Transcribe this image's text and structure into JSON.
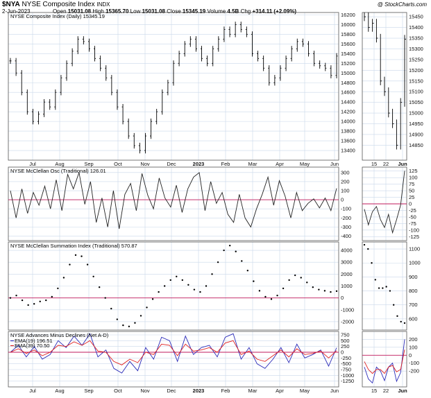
{
  "header": {
    "symbol": "$NYA",
    "name": "NYSE Composite Index",
    "exchange": "INDX",
    "date": "2-Jun-2023",
    "open_label": "Open",
    "open": "15031.08",
    "high_label": "High",
    "high": "15365.70",
    "low_label": "Low",
    "low": "15031.08",
    "close_label": "Close",
    "close": "15345.19",
    "volume_label": "Volume",
    "volume": "4.5B",
    "chg_label": "Chg",
    "chg": "+314.11 (+2.09%)",
    "watermark": "@ StockCharts.com"
  },
  "colors": {
    "grid": "#c9d7ea",
    "zero_line": "#c2185b",
    "ema19": "#2b2bb8",
    "ema39": "#e02020",
    "text": "#000000"
  },
  "chart_data": [
    {
      "type": "ohlc",
      "panel": "price",
      "title": "NYSE Composite Index (Daily) 15345.19",
      "ylim": [
        13200,
        16250
      ],
      "yticks": [
        13400,
        13600,
        13800,
        14000,
        14200,
        14400,
        14600,
        14800,
        15000,
        15200,
        15400,
        15600,
        15800,
        16000,
        16200
      ],
      "closes": [
        15250,
        15000,
        14600,
        14200,
        14000,
        14150,
        14400,
        14300,
        14600,
        14900,
        15200,
        15450,
        15700,
        15650,
        15500,
        15300,
        15100,
        14900,
        14600,
        14300,
        14000,
        13700,
        13500,
        13400,
        13700,
        14000,
        14200,
        14600,
        14800,
        15200,
        15400,
        15600,
        15700,
        15500,
        15300,
        15200,
        15500,
        15700,
        15900,
        15800,
        16000,
        15900,
        15800,
        15400,
        15300,
        15100,
        14800,
        14900,
        15100,
        15300,
        15500,
        15650,
        15600,
        15400,
        15200,
        15150,
        15100,
        14950,
        15350
      ],
      "zoom_ylim": [
        14780,
        15470
      ],
      "zoom_yticks": [
        14850,
        14900,
        14950,
        15000,
        15050,
        15100,
        15150,
        15200,
        15250,
        15300,
        15350,
        15400,
        15450
      ],
      "zoom_closes": [
        15450,
        15400,
        15420,
        15350,
        15150,
        15100,
        15000,
        14950,
        14850,
        15050,
        15345
      ]
    },
    {
      "type": "line",
      "panel": "mcclellan_osc",
      "title": "NYSE McClellan Osc (Traditional) 126.01",
      "ylim": [
        -450,
        360
      ],
      "yticks": [
        -400,
        -300,
        -200,
        -100,
        0,
        100,
        200,
        300
      ],
      "values": [
        100,
        -200,
        120,
        -150,
        80,
        -60,
        150,
        -100,
        220,
        -120,
        280,
        120,
        300,
        -50,
        200,
        -250,
        20,
        -300,
        100,
        -320,
        60,
        180,
        -120,
        290,
        50,
        -100,
        240,
        20,
        -80,
        160,
        -140,
        120,
        250,
        300,
        -120,
        200,
        -40,
        80,
        -160,
        -250,
        60,
        -200,
        -300,
        -100,
        60,
        250,
        -60,
        210,
        40,
        -200,
        80,
        -120,
        -40,
        10,
        -90,
        20,
        -120,
        126
      ],
      "zoom_ylim": [
        -140,
        140
      ],
      "zoom_yticks": [
        -125,
        -100,
        -75,
        -50,
        -25,
        0,
        25,
        50,
        75,
        100,
        125
      ],
      "zoom_values": [
        -20,
        -80,
        -30,
        -10,
        -60,
        -90,
        -40,
        -110,
        -60,
        -5,
        126
      ]
    },
    {
      "type": "scatter",
      "panel": "mcclellan_summation",
      "title": "NYSE McClellan Summation Index (Traditional) 570.87",
      "ylim": [
        -2700,
        4700
      ],
      "yticks": [
        -2000,
        -1000,
        0,
        1000,
        2000,
        3000,
        4000
      ],
      "values": [
        0,
        200,
        -200,
        -600,
        -500,
        -300,
        -200,
        100,
        800,
        1700,
        2800,
        3600,
        3500,
        2800,
        1800,
        900,
        0,
        -900,
        -1800,
        -2300,
        -2400,
        -2100,
        -1500,
        -800,
        -100,
        500,
        1000,
        1500,
        1800,
        1500,
        1100,
        700,
        500,
        1000,
        2000,
        3000,
        4000,
        4400,
        3900,
        3100,
        2300,
        1400,
        600,
        100,
        -100,
        200,
        800,
        1500,
        1900,
        1700,
        1300,
        900,
        700,
        600,
        500,
        570
      ],
      "zoom_ylim": [
        520,
        1150
      ],
      "zoom_yticks": [
        600,
        700,
        800,
        900,
        1000,
        1100
      ],
      "zoom_values": [
        1130,
        1100,
        1000,
        880,
        820,
        820,
        830,
        800,
        700,
        620,
        580,
        570
      ]
    },
    {
      "type": "line",
      "panel": "advances_minus_declines",
      "title": "NYSE Advances Minus Declines (Net A-D)",
      "ylim": [
        -1500,
        900
      ],
      "yticks": [
        -1250,
        -1000,
        -750,
        -500,
        -250,
        0,
        250,
        500,
        750
      ],
      "series": [
        {
          "name": "EMA(19) 196.51",
          "values": [
            0,
            300,
            -200,
            250,
            -300,
            -100,
            500,
            200,
            700,
            300,
            800,
            -200,
            100,
            -700,
            -900,
            -400,
            -800,
            200,
            -300,
            650,
            500,
            -400,
            700,
            -100,
            200,
            300,
            -200,
            650,
            800,
            -300,
            200,
            -500,
            -700,
            -300,
            200,
            -450,
            350,
            -250,
            -100,
            100,
            -600,
            196
          ]
        },
        {
          "name": "EMA(39) 70.50",
          "values": [
            0,
            150,
            -50,
            100,
            -150,
            0,
            300,
            250,
            450,
            300,
            500,
            50,
            0,
            -400,
            -550,
            -300,
            -450,
            0,
            -100,
            350,
            300,
            -150,
            350,
            50,
            100,
            200,
            0,
            400,
            500,
            -100,
            50,
            -300,
            -400,
            -150,
            100,
            -200,
            150,
            -100,
            -50,
            50,
            -250,
            70
          ]
        }
      ],
      "zoom_ylim": [
        -400,
        300
      ],
      "zoom_yticks": [
        -200,
        -100,
        0,
        100,
        200
      ],
      "zoom_series": [
        {
          "name": "EMA(19)",
          "values": [
            -150,
            -300,
            -350,
            -150,
            -200,
            -320,
            -150,
            -100,
            -330,
            -220,
            200
          ]
        },
        {
          "name": "EMA(39)",
          "values": [
            -80,
            -180,
            -230,
            -180,
            -180,
            -230,
            -150,
            -130,
            -210,
            -180,
            70
          ]
        }
      ]
    }
  ],
  "x_axis": {
    "month_labels": [
      "Jul",
      "Aug",
      "Sep",
      "Oct",
      "Nov",
      "Dec",
      "2023",
      "Feb",
      "Mar",
      "Apr",
      "May",
      "Jun"
    ],
    "zoom_labels": [
      "15",
      "22",
      "Jun"
    ]
  }
}
